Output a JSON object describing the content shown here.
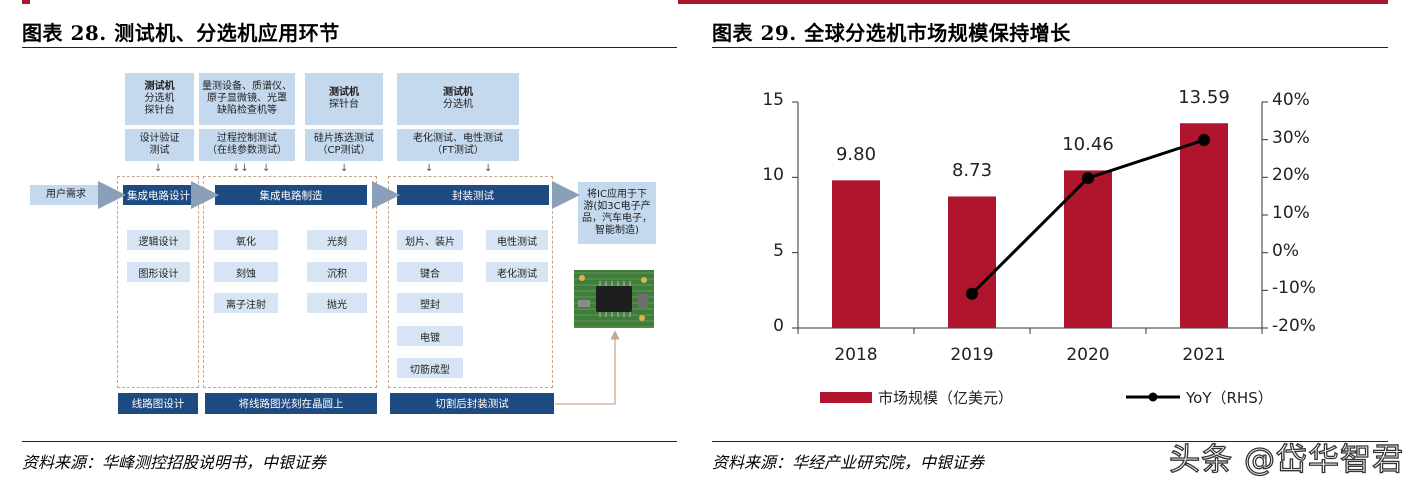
{
  "left": {
    "title": "图表 28. 测试机、分选机应用环节",
    "source": "资料来源：华峰测控招股说明书，中银证券",
    "top_boxes": [
      {
        "bold": "测试机",
        "lines": [
          "分选机",
          "探针台"
        ]
      },
      {
        "bold": "",
        "lines": [
          "量测设备、质谱仪、",
          "原子显微镜、光罩",
          "缺陷检查机等"
        ]
      },
      {
        "bold": "测试机",
        "lines": [
          "探针台"
        ]
      },
      {
        "bold": "测试机",
        "lines": [
          "分选机"
        ]
      }
    ],
    "second_boxes": [
      [
        "设计验证",
        "测试"
      ],
      [
        "过程控制测试",
        "（在线参数测试）"
      ],
      [
        "硅片拣选测试",
        "（CP测试）"
      ],
      [
        "老化测试、电性测试",
        "（FT测试）"
      ]
    ],
    "user_need": "用户需求",
    "stages": [
      "集成电路设计",
      "集成电路制造",
      "封装测试"
    ],
    "design_steps": [
      "逻辑设计",
      "图形设计"
    ],
    "manufacture_steps": [
      "氧化",
      "光刻",
      "刻蚀",
      "沉积",
      "离子注射",
      "抛光"
    ],
    "package_steps_left": [
      "划片、装片",
      "键合",
      "塑封",
      "电镀",
      "切筋成型"
    ],
    "package_steps_right": [
      "电性测试",
      "老化测试"
    ],
    "downstream": [
      "将IC应用于下",
      "游(如3C电子产",
      "品，汽车电子，",
      "智能制造)"
    ],
    "bottom_boxes": [
      "线路图设计",
      "将线路图光刻在晶圆上",
      "切割后封装测试"
    ]
  },
  "right": {
    "title": "图表 29. 全球分选机市场规模保持增长",
    "source": "资料来源：华经产业研究院，中银证券",
    "chart_data": {
      "type": "bar+line",
      "categories": [
        "2018",
        "2019",
        "2020",
        "2021"
      ],
      "series": [
        {
          "name": "市场规模（亿美元）",
          "type": "bar",
          "axis": "left",
          "values": [
            9.8,
            8.73,
            10.46,
            13.59
          ],
          "labels": [
            "9.80",
            "8.73",
            "10.46",
            "13.59"
          ],
          "color": "#b0152e"
        },
        {
          "name": "YoY（RHS）",
          "type": "line",
          "axis": "right",
          "values": [
            null,
            -10.9,
            19.8,
            29.9
          ],
          "color": "#000000"
        }
      ],
      "ylim": [
        0,
        15
      ],
      "yticks": [
        "0",
        "5",
        "10",
        "15"
      ],
      "y2lim": [
        -20,
        40
      ],
      "y2ticks": [
        "-20%",
        "-10%",
        "0%",
        "10%",
        "20%",
        "30%",
        "40%"
      ],
      "legend": "bottom"
    }
  },
  "watermark": "头条 @岱华智君",
  "colors": {
    "accent_red": "#a8192e",
    "bar_red": "#b0152e",
    "dark_blue": "#1e4a82",
    "light_blue": "#c5d9ee"
  }
}
